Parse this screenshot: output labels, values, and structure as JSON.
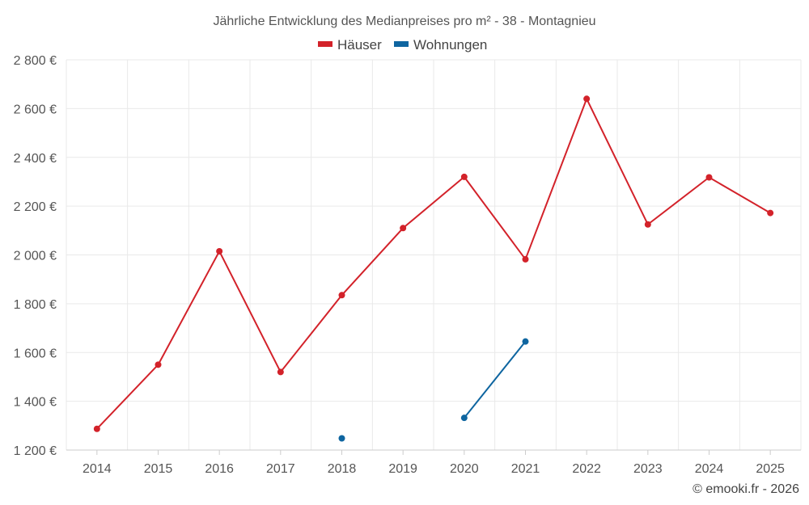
{
  "chart_data": {
    "type": "line",
    "title": "Jährliche Entwicklung des Medianpreises pro m² - 38 - Montagnieu",
    "categories": [
      "2014",
      "2015",
      "2016",
      "2017",
      "2018",
      "2019",
      "2020",
      "2021",
      "2022",
      "2023",
      "2024",
      "2025"
    ],
    "series": [
      {
        "name": "Häuser",
        "color": "#d3222a",
        "values": [
          1287,
          1550,
          2015,
          1520,
          1835,
          2110,
          2320,
          1982,
          2640,
          2125,
          2318,
          2172
        ]
      },
      {
        "name": "Wohnungen",
        "color": "#0e65a0",
        "values": [
          null,
          null,
          null,
          null,
          1248,
          null,
          1332,
          1645,
          null,
          null,
          null,
          null
        ]
      }
    ],
    "ylim": [
      1200,
      2800
    ],
    "yticks": [
      1200,
      1400,
      1600,
      1800,
      2000,
      2200,
      2400,
      2600,
      2800
    ],
    "ytick_labels": [
      "1 200 €",
      "1 400 €",
      "1 600 €",
      "1 800 €",
      "2 000 €",
      "2 200 €",
      "2 400 €",
      "2 600 €",
      "2 800 €"
    ],
    "grid": true,
    "legend_position": "top-center"
  },
  "credit": "© emooki.fr - 2026"
}
